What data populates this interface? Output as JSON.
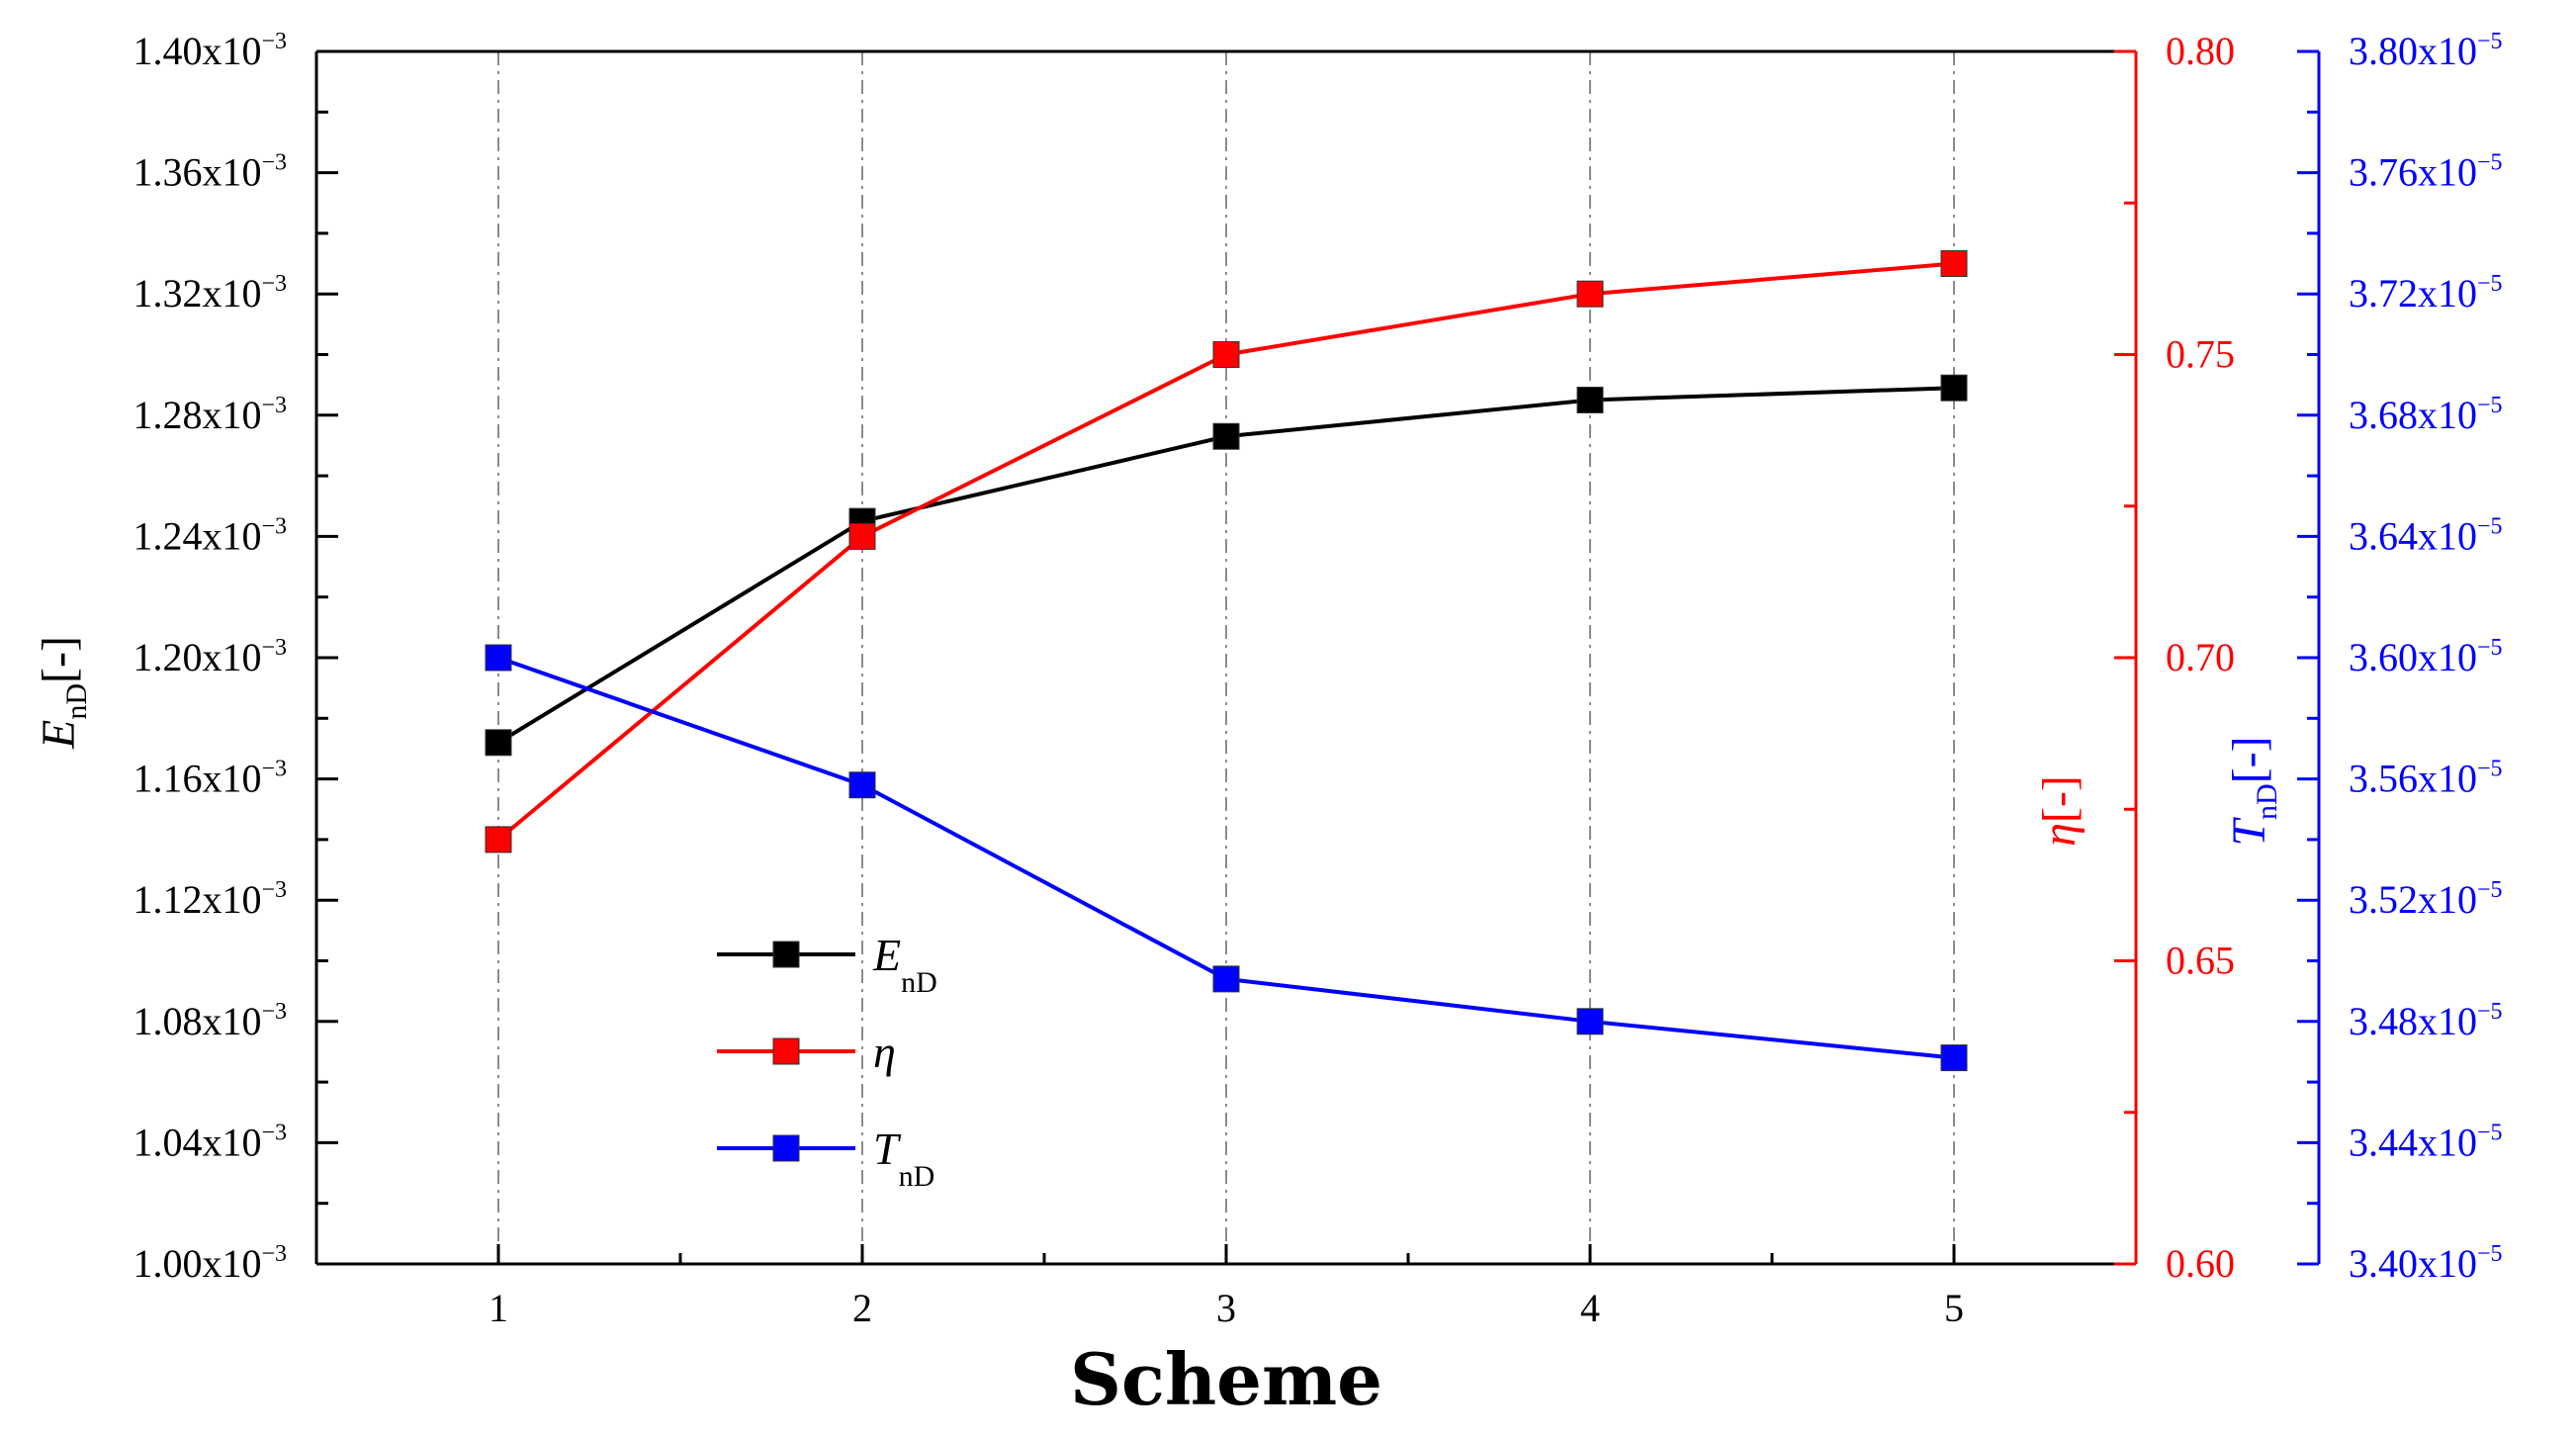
{
  "chart_data": {
    "type": "line",
    "xlabel": "Scheme",
    "x": [
      1,
      2,
      3,
      4,
      5
    ],
    "xticks": [
      "1",
      "2",
      "3",
      "4",
      "5"
    ],
    "xlim": [
      0.5,
      5.5
    ],
    "grid": "vertical dash-dot lines at each scheme",
    "legend_position": "lower-left",
    "axes": {
      "left": {
        "label_main": "E",
        "label_sub": "nD",
        "label_suffix": "[-]",
        "color": "#000000",
        "ylim": [
          1.0,
          1.4
        ],
        "ticks": [
          1.0,
          1.04,
          1.08,
          1.12,
          1.16,
          1.2,
          1.24,
          1.28,
          1.32,
          1.36,
          1.4
        ],
        "tick_labels": [
          "1.00x10",
          "1.04x10",
          "1.08x10",
          "1.12x10",
          "1.16x10",
          "1.20x10",
          "1.24x10",
          "1.28x10",
          "1.32x10",
          "1.36x10",
          "1.40x10"
        ],
        "tick_exp": "−3"
      },
      "right1": {
        "label_main": "η",
        "label_suffix": "[-]",
        "color": "#ff0000",
        "ylim": [
          0.6,
          0.8
        ],
        "ticks": [
          0.6,
          0.65,
          0.7,
          0.75,
          0.8
        ],
        "tick_labels": [
          "0.60",
          "0.65",
          "0.70",
          "0.75",
          "0.80"
        ]
      },
      "right2": {
        "label_main": "T",
        "label_sub": "nD",
        "label_suffix": "[-]",
        "color": "#0000ff",
        "ylim": [
          3.4,
          3.8
        ],
        "ticks": [
          3.4,
          3.44,
          3.48,
          3.52,
          3.56,
          3.6,
          3.64,
          3.68,
          3.72,
          3.76,
          3.8
        ],
        "tick_labels": [
          "3.40x10",
          "3.44x10",
          "3.48x10",
          "3.52x10",
          "3.56x10",
          "3.60x10",
          "3.64x10",
          "3.68x10",
          "3.72x10",
          "3.76x10",
          "3.80x10"
        ],
        "tick_exp": "−5"
      }
    },
    "series": [
      {
        "name": "E",
        "name_sub": "nD",
        "axis": "left",
        "color": "#000000",
        "marker": "square",
        "values": [
          1.172,
          1.245,
          1.273,
          1.285,
          1.289
        ]
      },
      {
        "name": "η",
        "name_sub": "",
        "axis": "right1",
        "color": "#ff0000",
        "marker": "square",
        "values": [
          0.67,
          0.72,
          0.75,
          0.76,
          0.765
        ]
      },
      {
        "name": "T",
        "name_sub": "nD",
        "axis": "right2",
        "color": "#0000ff",
        "marker": "square",
        "values": [
          3.6,
          3.558,
          3.494,
          3.48,
          3.468
        ]
      }
    ]
  }
}
